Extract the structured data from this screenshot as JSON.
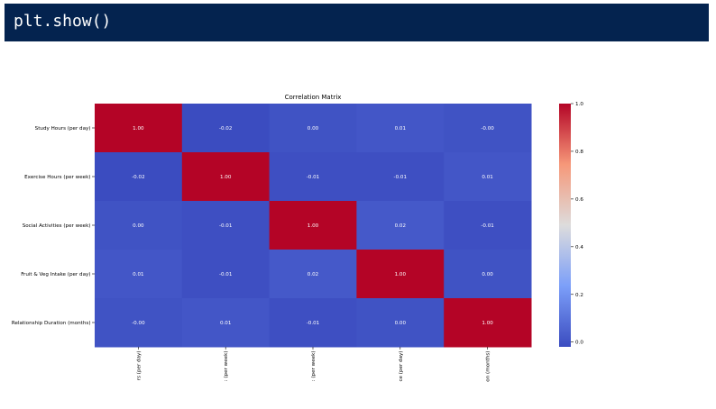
{
  "code_cell": {
    "code": "plt.show()"
  },
  "chart_data": {
    "type": "heatmap",
    "title": "Correlation Matrix",
    "colormap": "coolwarm",
    "row_labels": [
      "Study Hours (per day)",
      "Exercise Hours (per week)",
      "Social Activities (per week)",
      "Fruit & Veg Intake (per day)",
      "Relationship Duration (months)"
    ],
    "col_labels_visible": [
      "rs (per day)",
      ": (per week)",
      ": (per week)",
      "ce (per day)",
      "on (months)"
    ],
    "matrix": [
      [
        1.0,
        -0.02,
        0.0,
        0.01,
        -0.0
      ],
      [
        -0.02,
        1.0,
        -0.01,
        -0.01,
        0.01
      ],
      [
        0.0,
        -0.01,
        1.0,
        0.02,
        -0.01
      ],
      [
        0.01,
        -0.01,
        0.02,
        1.0,
        0.0
      ],
      [
        -0.0,
        0.01,
        -0.01,
        0.0,
        1.0
      ]
    ],
    "annotations": [
      [
        "1.00",
        "-0.02",
        "0.00",
        "0.01",
        "-0.00"
      ],
      [
        "-0.02",
        "1.00",
        "-0.01",
        "-0.01",
        "0.01"
      ],
      [
        "0.00",
        "-0.01",
        "1.00",
        "0.02",
        "-0.01"
      ],
      [
        "0.01",
        "-0.01",
        "0.02",
        "1.00",
        "0.00"
      ],
      [
        "-0.00",
        "0.01",
        "-0.01",
        "0.00",
        "1.00"
      ]
    ],
    "colorbar": {
      "range": [
        -0.02,
        1.0
      ],
      "ticks": [
        0.0,
        0.2,
        0.4,
        0.6,
        0.8,
        1.0
      ],
      "tick_labels": [
        "0.0",
        "0.2",
        "0.4",
        "0.6",
        "0.8",
        "1.0"
      ]
    }
  }
}
